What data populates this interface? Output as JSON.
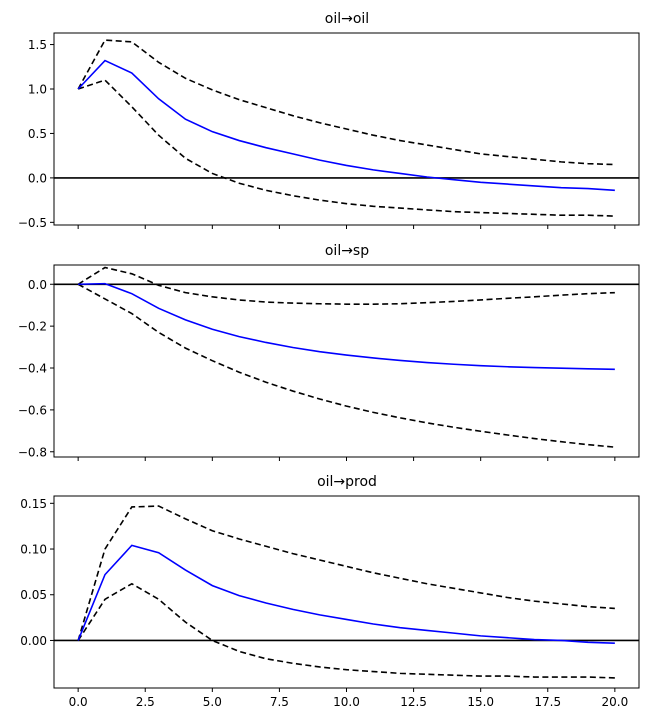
{
  "chart_data": [
    {
      "type": "line",
      "title": "oil→oil",
      "x": [
        0,
        1,
        2,
        3,
        4,
        5,
        6,
        7,
        8,
        9,
        10,
        11,
        12,
        13,
        14,
        15,
        16,
        17,
        18,
        19,
        20
      ],
      "xlim": [
        -0.9,
        20.9
      ],
      "ylim": [
        -0.53,
        1.63
      ],
      "yticks": [
        -0.5,
        0.0,
        0.5,
        1.0,
        1.5
      ],
      "ytick_labels": [
        "−0.5",
        "0.0",
        "0.5",
        "1.0",
        "1.5"
      ],
      "xticks": [
        0,
        2.5,
        5,
        7.5,
        10,
        12.5,
        15,
        17.5,
        20
      ],
      "xtick_labels": [],
      "series": [
        {
          "name": "irf",
          "style": "solid",
          "color": "#0000ff",
          "values": [
            1.0,
            1.32,
            1.18,
            0.89,
            0.66,
            0.52,
            0.42,
            0.34,
            0.27,
            0.2,
            0.14,
            0.09,
            0.05,
            0.01,
            -0.02,
            -0.05,
            -0.07,
            -0.09,
            -0.11,
            -0.12,
            -0.14
          ]
        },
        {
          "name": "upper",
          "style": "dashed",
          "color": "#000000",
          "values": [
            1.0,
            1.55,
            1.53,
            1.3,
            1.12,
            0.99,
            0.88,
            0.79,
            0.7,
            0.62,
            0.55,
            0.48,
            0.42,
            0.37,
            0.32,
            0.27,
            0.24,
            0.21,
            0.18,
            0.16,
            0.15
          ]
        },
        {
          "name": "lower",
          "style": "dashed",
          "color": "#000000",
          "values": [
            1.0,
            1.1,
            0.8,
            0.48,
            0.22,
            0.05,
            -0.06,
            -0.14,
            -0.2,
            -0.25,
            -0.29,
            -0.32,
            -0.34,
            -0.36,
            -0.38,
            -0.39,
            -0.4,
            -0.41,
            -0.42,
            -0.42,
            -0.43
          ]
        }
      ]
    },
    {
      "type": "line",
      "title": "oil→sp",
      "x": [
        0,
        1,
        2,
        3,
        4,
        5,
        6,
        7,
        8,
        9,
        10,
        11,
        12,
        13,
        14,
        15,
        16,
        17,
        18,
        19,
        20
      ],
      "xlim": [
        -0.9,
        20.9
      ],
      "ylim": [
        -0.825,
        0.092
      ],
      "yticks": [
        -0.8,
        -0.6,
        -0.4,
        -0.2,
        0.0
      ],
      "ytick_labels": [
        "−0.8",
        "−0.6",
        "−0.4",
        "−0.2",
        "0.0"
      ],
      "xticks": [
        0,
        2.5,
        5,
        7.5,
        10,
        12.5,
        15,
        17.5,
        20
      ],
      "xtick_labels": [],
      "series": [
        {
          "name": "irf",
          "style": "solid",
          "color": "#0000ff",
          "values": [
            0.0,
            0.003,
            -0.045,
            -0.115,
            -0.17,
            -0.215,
            -0.25,
            -0.278,
            -0.302,
            -0.322,
            -0.338,
            -0.352,
            -0.364,
            -0.374,
            -0.382,
            -0.389,
            -0.394,
            -0.398,
            -0.401,
            -0.404,
            -0.406
          ]
        },
        {
          "name": "upper",
          "style": "dashed",
          "color": "#000000",
          "values": [
            0.0,
            0.08,
            0.05,
            -0.005,
            -0.04,
            -0.06,
            -0.075,
            -0.085,
            -0.09,
            -0.093,
            -0.095,
            -0.095,
            -0.093,
            -0.088,
            -0.082,
            -0.075,
            -0.067,
            -0.06,
            -0.052,
            -0.045,
            -0.04
          ]
        },
        {
          "name": "lower",
          "style": "dashed",
          "color": "#000000",
          "values": [
            0.0,
            -0.07,
            -0.14,
            -0.23,
            -0.305,
            -0.365,
            -0.42,
            -0.468,
            -0.51,
            -0.548,
            -0.582,
            -0.612,
            -0.638,
            -0.662,
            -0.683,
            -0.702,
            -0.72,
            -0.737,
            -0.752,
            -0.766,
            -0.778
          ]
        }
      ]
    },
    {
      "type": "line",
      "title": "oil→prod",
      "x": [
        0,
        1,
        2,
        3,
        4,
        5,
        6,
        7,
        8,
        9,
        10,
        11,
        12,
        13,
        14,
        15,
        16,
        17,
        18,
        19,
        20
      ],
      "xlim": [
        -0.9,
        20.9
      ],
      "ylim": [
        -0.052,
        0.158
      ],
      "yticks": [
        0.0,
        0.05,
        0.1,
        0.15
      ],
      "ytick_labels": [
        "0.00",
        "0.05",
        "0.10",
        "0.15"
      ],
      "xticks": [
        0,
        2.5,
        5,
        7.5,
        10,
        12.5,
        15,
        17.5,
        20
      ],
      "xtick_labels": [
        "0.0",
        "2.5",
        "5.0",
        "7.5",
        "10.0",
        "12.5",
        "15.0",
        "17.5",
        "20.0"
      ],
      "series": [
        {
          "name": "irf",
          "style": "solid",
          "color": "#0000ff",
          "values": [
            0.0,
            0.072,
            0.104,
            0.096,
            0.077,
            0.06,
            0.049,
            0.041,
            0.034,
            0.028,
            0.023,
            0.018,
            0.014,
            0.011,
            0.008,
            0.005,
            0.003,
            0.001,
            0.0,
            -0.002,
            -0.003
          ]
        },
        {
          "name": "upper",
          "style": "dashed",
          "color": "#000000",
          "values": [
            0.0,
            0.1,
            0.146,
            0.147,
            0.133,
            0.12,
            0.111,
            0.103,
            0.095,
            0.088,
            0.081,
            0.074,
            0.068,
            0.062,
            0.057,
            0.052,
            0.047,
            0.043,
            0.04,
            0.037,
            0.035
          ]
        },
        {
          "name": "lower",
          "style": "dashed",
          "color": "#000000",
          "values": [
            0.0,
            0.045,
            0.062,
            0.045,
            0.02,
            0.0,
            -0.012,
            -0.02,
            -0.025,
            -0.029,
            -0.032,
            -0.034,
            -0.036,
            -0.037,
            -0.038,
            -0.039,
            -0.039,
            -0.04,
            -0.04,
            -0.04,
            -0.041
          ]
        }
      ]
    }
  ]
}
